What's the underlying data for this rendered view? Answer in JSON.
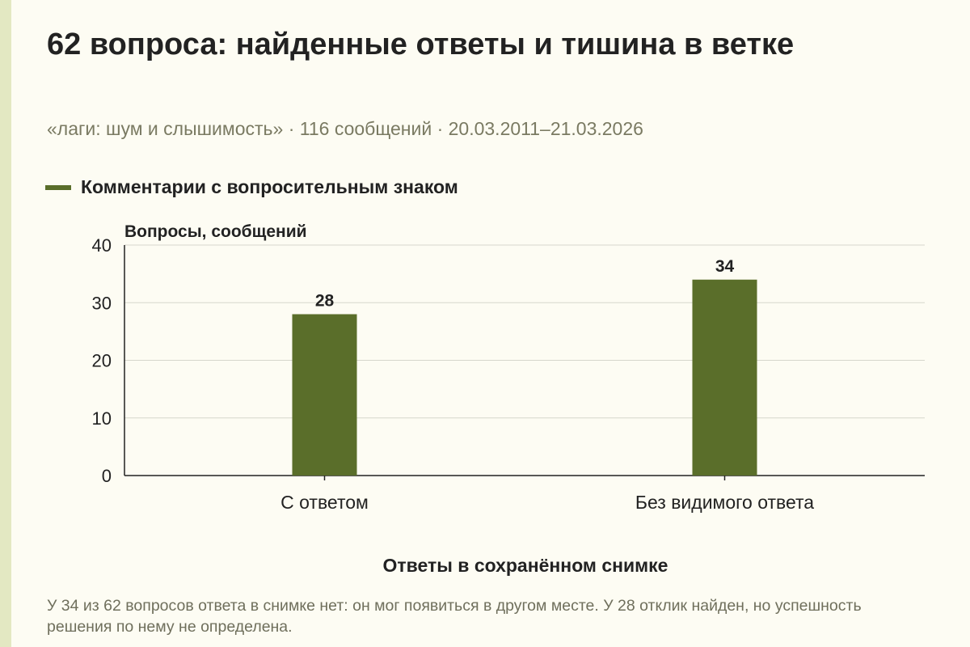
{
  "title": "62 вопроса: найденные ответы и тишина в ветке",
  "subtitle": "«лаги: шум и слышимость» · 116 сообщений · 20.03.2011–21.03.2026",
  "note": "У 34 из 62 вопросов ответа в снимке нет: он мог появиться в другом месте. У 28 отклик найден, но успешность решения по нему не определена.",
  "colors": {
    "bar": "#5a6e2a",
    "grid": "#d6d6cc",
    "axis": "#222222",
    "background": "#fdfcf3"
  },
  "chart_data": {
    "type": "bar",
    "categories": [
      "С ответом",
      "Без видимого ответа"
    ],
    "series": [
      {
        "name": "Комментарии с вопросительным знаком",
        "values": [
          28,
          34
        ]
      }
    ],
    "xlabel": "Ответы в сохранённом снимке",
    "ylabel": "Вопросы, сообщений",
    "ylim": [
      0,
      40
    ],
    "yticks": [
      0,
      10,
      20,
      30,
      40
    ],
    "data_labels": [
      "28",
      "34"
    ],
    "grid": true,
    "legend": "top-left"
  }
}
